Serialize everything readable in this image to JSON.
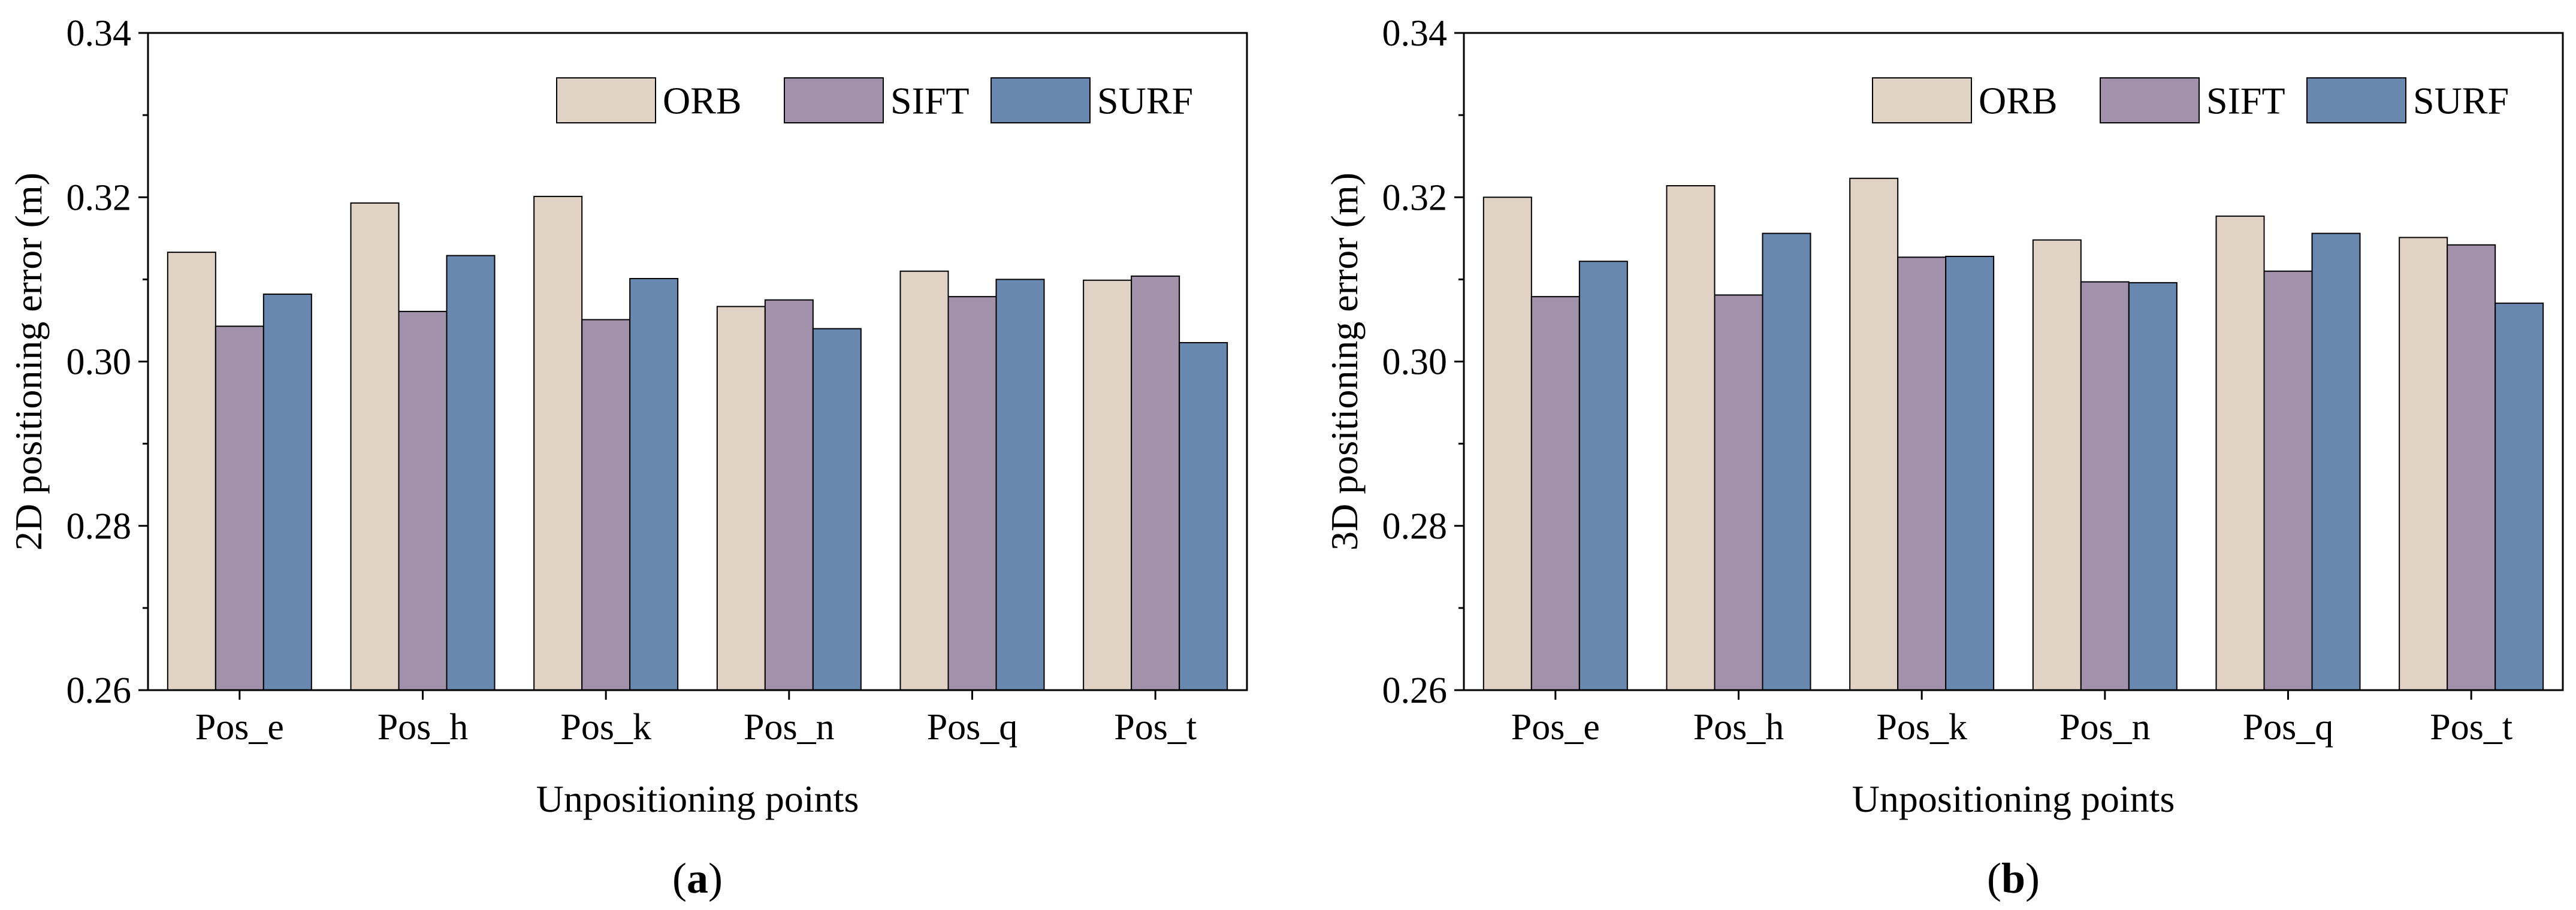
{
  "colors": {
    "ORB": "#e0d3c5",
    "SIFT": "#a191ab",
    "SURF": "#6888b0"
  },
  "chart_data": [
    {
      "type": "bar",
      "panel_label": "a",
      "categories": [
        "Pos_e",
        "Pos_h",
        "Pos_k",
        "Pos_n",
        "Pos_q",
        "Pos_t"
      ],
      "series": [
        {
          "name": "ORB",
          "values": [
            0.3133,
            0.3193,
            0.3201,
            0.3067,
            0.311,
            0.3099
          ]
        },
        {
          "name": "SIFT",
          "values": [
            0.3043,
            0.3061,
            0.3051,
            0.3075,
            0.3079,
            0.3104
          ]
        },
        {
          "name": "SURF",
          "values": [
            0.3082,
            0.3129,
            0.3101,
            0.304,
            0.31,
            0.3023
          ]
        }
      ],
      "xlabel": "Unpositioning points",
      "ylabel": "2D positioning error (m)",
      "ylim": [
        0.26,
        0.34
      ],
      "yticks": [
        "0.26",
        "0.28",
        "0.30",
        "0.32",
        "0.34"
      ],
      "legend_position": "top-right",
      "grid": false
    },
    {
      "type": "bar",
      "panel_label": "b",
      "categories": [
        "Pos_e",
        "Pos_h",
        "Pos_k",
        "Pos_n",
        "Pos_q",
        "Pos_t"
      ],
      "series": [
        {
          "name": "ORB",
          "values": [
            0.32,
            0.3214,
            0.3223,
            0.3148,
            0.3177,
            0.3151
          ]
        },
        {
          "name": "SIFT",
          "values": [
            0.3079,
            0.3081,
            0.3127,
            0.3097,
            0.311,
            0.3142
          ]
        },
        {
          "name": "SURF",
          "values": [
            0.3122,
            0.3156,
            0.3128,
            0.3096,
            0.3156,
            0.3071
          ]
        }
      ],
      "xlabel": "Unpositioning points",
      "ylabel": "3D positioning error (m)",
      "ylim": [
        0.26,
        0.34
      ],
      "yticks": [
        "0.26",
        "0.28",
        "0.30",
        "0.32",
        "0.34"
      ],
      "legend_position": "top-right",
      "grid": false
    }
  ]
}
